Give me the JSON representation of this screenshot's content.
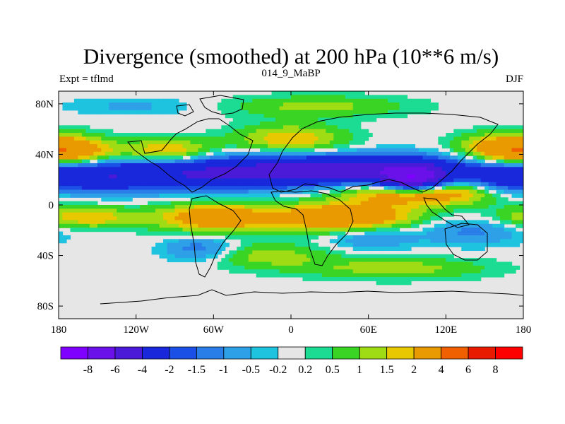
{
  "chart_data": {
    "type": "heatmap",
    "title": "Divergence (smoothed) at 200 hPa (10**6 m/s)",
    "subtitle_left": "Expt = tflmd",
    "subtitle_center": "014_9_MaBP",
    "subtitle_right": "DJF",
    "x_ticks": [
      {
        "value": -180,
        "label": "180"
      },
      {
        "value": -120,
        "label": "120W"
      },
      {
        "value": -60,
        "label": "60W"
      },
      {
        "value": 0,
        "label": "0"
      },
      {
        "value": 60,
        "label": "60E"
      },
      {
        "value": 120,
        "label": "120E"
      },
      {
        "value": 180,
        "label": "180"
      }
    ],
    "y_ticks": [
      {
        "value": 80,
        "label": "80N"
      },
      {
        "value": 40,
        "label": "40N"
      },
      {
        "value": 0,
        "label": "0"
      },
      {
        "value": -40,
        "label": "40S"
      },
      {
        "value": -80,
        "label": "80S"
      }
    ],
    "xlim": [
      -180,
      180
    ],
    "ylim": [
      -90,
      90
    ],
    "contour_levels": [
      "-8",
      "-6",
      "-4",
      "-2",
      "-1.5",
      "-1",
      "-0.5",
      "-0.2",
      "0.2",
      "0.5",
      "1",
      "1.5",
      "2",
      "4",
      "6",
      "8"
    ],
    "colors": [
      "#7f00ff",
      "#6a10e8",
      "#4a1ad8",
      "#1a28dc",
      "#1a50e6",
      "#2a7ee8",
      "#2ea0e8",
      "#1ec3e0",
      "#e6e6e6",
      "#1cdc94",
      "#3ad424",
      "#a0dc14",
      "#e8c800",
      "#e89a00",
      "#f06000",
      "#e81a00",
      "#ff0000"
    ],
    "features": [
      {
        "lon": -60,
        "lat": 25,
        "value": -4,
        "spread_lon": 60,
        "spread_lat": 9
      },
      {
        "lon": 60,
        "lat": 28,
        "value": -4.5,
        "spread_lon": 60,
        "spread_lat": 8
      },
      {
        "lon": 95,
        "lat": 20,
        "value": -6,
        "spread_lon": 18,
        "spread_lat": 7
      },
      {
        "lon": -150,
        "lat": 22,
        "value": -2.5,
        "spread_lon": 30,
        "spread_lat": 8
      },
      {
        "lon": 165,
        "lat": 20,
        "value": -2,
        "spread_lon": 20,
        "spread_lat": 8
      },
      {
        "lon": -170,
        "lat": 42,
        "value": 2.5,
        "spread_lon": 25,
        "spread_lat": 8
      },
      {
        "lon": -95,
        "lat": 42,
        "value": 2.3,
        "spread_lon": 25,
        "spread_lat": 7
      },
      {
        "lon": 0,
        "lat": 52,
        "value": 2,
        "spread_lon": 30,
        "spread_lat": 8
      },
      {
        "lon": 165,
        "lat": 45,
        "value": 2.5,
        "spread_lon": 25,
        "spread_lat": 8
      },
      {
        "lon": 100,
        "lat": 10,
        "value": 3.5,
        "spread_lon": 40,
        "spread_lat": 7
      },
      {
        "lon": -60,
        "lat": -10,
        "value": 3,
        "spread_lon": 30,
        "spread_lat": 8
      },
      {
        "lon": 40,
        "lat": -10,
        "value": 3.5,
        "spread_lon": 40,
        "spread_lat": 8
      },
      {
        "lon": -160,
        "lat": -10,
        "value": 2,
        "spread_lon": 30,
        "spread_lat": 6
      },
      {
        "lon": -70,
        "lat": -35,
        "value": -1.5,
        "spread_lon": 20,
        "spread_lat": 7
      },
      {
        "lon": 60,
        "lat": -25,
        "value": -1.2,
        "spread_lon": 25,
        "spread_lat": 7
      },
      {
        "lon": 140,
        "lat": -20,
        "value": -1.2,
        "spread_lon": 30,
        "spread_lat": 8
      },
      {
        "lon": -20,
        "lat": -40,
        "value": 1.3,
        "spread_lon": 35,
        "spread_lat": 7
      },
      {
        "lon": 80,
        "lat": -50,
        "value": 1.3,
        "spread_lon": 50,
        "spread_lat": 6
      },
      {
        "lon": 20,
        "lat": 78,
        "value": 1.2,
        "spread_lon": 50,
        "spread_lat": 6
      },
      {
        "lon": -120,
        "lat": 78,
        "value": -0.6,
        "spread_lon": 40,
        "spread_lat": 5
      }
    ]
  }
}
